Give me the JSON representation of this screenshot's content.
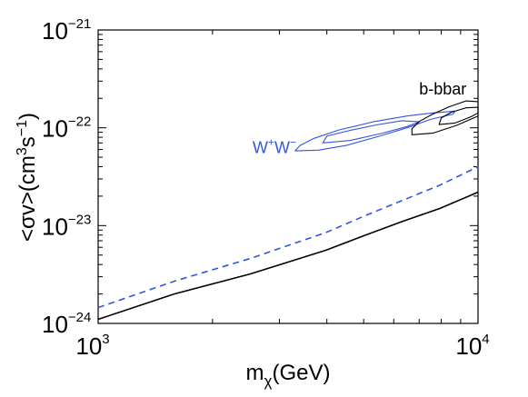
{
  "chart_data": {
    "type": "line",
    "xscale": "log",
    "yscale": "log",
    "xlim": [
      1000,
      10000
    ],
    "ylim": [
      1e-24,
      1e-21
    ],
    "grid": false,
    "legend": "none",
    "xlabel": {
      "main": "m",
      "sub": "χ",
      "rest": "(GeV)"
    },
    "ylabel": {
      "a": "<σv>(cm",
      "a_sup": "3",
      "b": "s",
      "b_sup": "−1",
      "c": ")"
    },
    "x_ticks": [
      {
        "value": 1000,
        "base": "10",
        "exp": "3"
      },
      {
        "value": 10000,
        "base": "10",
        "exp": "4"
      }
    ],
    "y_ticks": [
      {
        "value": 1e-24,
        "base": "10",
        "exp": "−24"
      },
      {
        "value": 1e-23,
        "base": "10",
        "exp": "−23"
      },
      {
        "value": 1e-22,
        "base": "10",
        "exp": "−22"
      },
      {
        "value": 1e-21,
        "base": "10",
        "exp": "−21"
      }
    ],
    "series": [
      {
        "style": "solid",
        "color": "#000000",
        "x": [
          1000,
          1585,
          2512,
          3981,
          5012,
          6310,
          7943,
          10000
        ],
        "y": [
          1.1e-24,
          2e-24,
          3.2e-24,
          5.6e-24,
          7.9e-24,
          1.1e-23,
          1.5e-23,
          2.2e-23
        ]
      },
      {
        "style": "dashed",
        "color": "#3355dd",
        "x": [
          1000,
          1585,
          2512,
          3981,
          5012,
          6310,
          7943,
          10000
        ],
        "y": [
          1.45e-24,
          2.7e-24,
          4.6e-24,
          8.5e-24,
          1.25e-23,
          1.8e-23,
          2.6e-23,
          4e-23
        ]
      }
    ],
    "contours": [
      {
        "group": "W+W-",
        "level": "outer",
        "color": "#3355dd",
        "points": [
          [
            3300,
            5.8e-23
          ],
          [
            3800,
            5.9e-23
          ],
          [
            4500,
            6.6e-23
          ],
          [
            5500,
            8.2e-23
          ],
          [
            6500,
            1e-22
          ],
          [
            7500,
            1.22e-22
          ],
          [
            8600,
            1.38e-22
          ],
          [
            8700,
            1.48e-22
          ],
          [
            7600,
            1.42e-22
          ],
          [
            6500,
            1.32e-22
          ],
          [
            5300,
            1.15e-22
          ],
          [
            4300,
            9.5e-23
          ],
          [
            3700,
            7.8e-23
          ],
          [
            3400,
            6.6e-23
          ],
          [
            3300,
            5.8e-23
          ]
        ]
      },
      {
        "group": "W+W-",
        "level": "inner",
        "color": "#3355dd",
        "points": [
          [
            3900,
            7e-23
          ],
          [
            4600,
            7.4e-23
          ],
          [
            5600,
            8.8e-23
          ],
          [
            6500,
            1.03e-22
          ],
          [
            7000,
            1.15e-22
          ],
          [
            6300,
            1.18e-22
          ],
          [
            5400,
            1.07e-22
          ],
          [
            4600,
            9.4e-23
          ],
          [
            4000,
            8.2e-23
          ],
          [
            3900,
            7e-23
          ]
        ]
      },
      {
        "group": "b-bbar",
        "level": "outer",
        "color": "#000000",
        "points": [
          [
            6700,
            8.5e-23
          ],
          [
            7600,
            8.8e-23
          ],
          [
            8800,
            1.06e-22
          ],
          [
            10000,
            1.32e-22
          ],
          [
            10000,
            1.85e-22
          ],
          [
            9300,
            1.88e-22
          ],
          [
            8400,
            1.64e-22
          ],
          [
            7600,
            1.38e-22
          ],
          [
            7000,
            1.16e-22
          ],
          [
            6700,
            9.8e-23
          ],
          [
            6700,
            8.5e-23
          ]
        ]
      },
      {
        "group": "b-bbar",
        "level": "inner",
        "color": "#000000",
        "points": [
          [
            7900,
            1.08e-22
          ],
          [
            8700,
            1.12e-22
          ],
          [
            9600,
            1.3e-22
          ],
          [
            10000,
            1.42e-22
          ],
          [
            10000,
            1.62e-22
          ],
          [
            9300,
            1.6e-22
          ],
          [
            8500,
            1.44e-22
          ],
          [
            8000,
            1.26e-22
          ],
          [
            7900,
            1.08e-22
          ]
        ]
      }
    ],
    "annotations": [
      {
        "base": "b-bbar",
        "color": "#000000",
        "x": 7000,
        "y": 2.2e-22
      },
      {
        "base": "W",
        "sup1": "+",
        "mid": "W",
        "sup2": "−",
        "color": "#3355dd",
        "x": 2550,
        "y": 5.5e-23
      }
    ]
  }
}
